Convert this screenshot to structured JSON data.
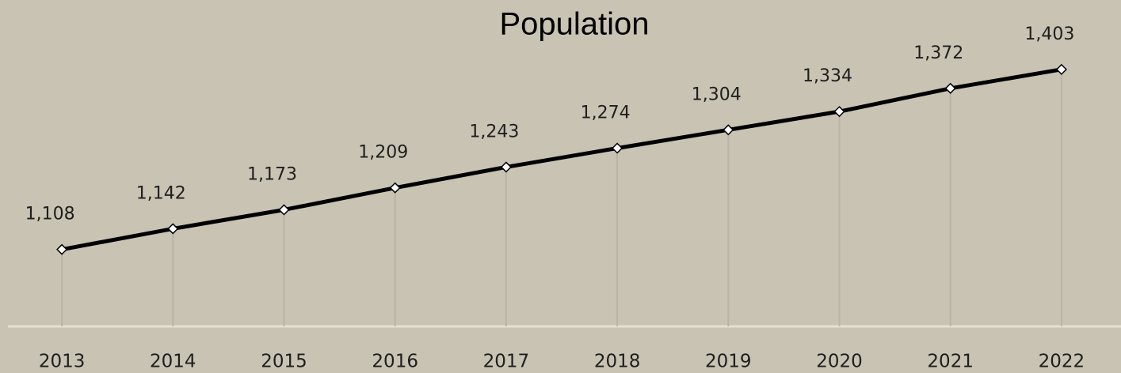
{
  "chart_data": {
    "type": "line",
    "title": "Population",
    "categories": [
      "2013",
      "2014",
      "2015",
      "2016",
      "2017",
      "2018",
      "2019",
      "2020",
      "2021",
      "2022"
    ],
    "values": [
      1108,
      1142,
      1173,
      1209,
      1243,
      1274,
      1304,
      1334,
      1372,
      1403
    ],
    "value_labels": [
      "1,108",
      "1,142",
      "1,173",
      "1,209",
      "1,243",
      "1,274",
      "1,304",
      "1,334",
      "1,372",
      "1,403"
    ],
    "color": "#000000",
    "ylim": [
      982,
      1452
    ]
  }
}
